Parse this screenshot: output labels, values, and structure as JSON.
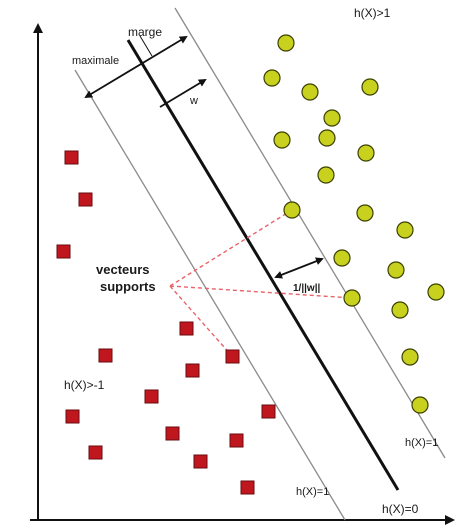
{
  "labels": {
    "marge": "marge",
    "maximale": "maximale",
    "w": "w",
    "h_pos_region": "h(X)>1",
    "h_neg_region": "h(X)>-1",
    "h_pos_margin": "h(X)=1",
    "h_neg_margin": "h(X)=1",
    "h_zero": "h(X)=0",
    "distance": "1/||w||",
    "support_vectors_line1": "vecteurs",
    "support_vectors_line2": "supports"
  },
  "colors": {
    "circle_fill": "#c8d21e",
    "circle_stroke": "#3a3f00",
    "square_fill": "#c0171f",
    "square_stroke": "#6a0b0f",
    "dashed_leader": "#e8636a",
    "hyperplane": "#111111",
    "margin_line": "#8a8a8a"
  },
  "markers": {
    "circle": "positive-class-circle",
    "square": "negative-class-square"
  }
}
